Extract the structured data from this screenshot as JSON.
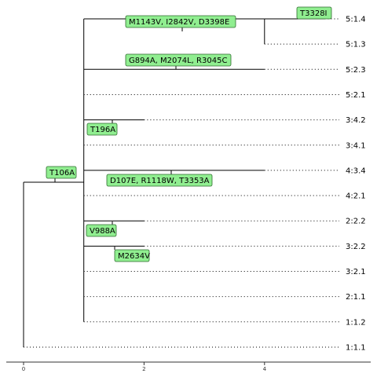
{
  "colors": {
    "mutation_box": "#90ee90",
    "branch": "#000000"
  },
  "tree": {
    "root": {
      "id": "root",
      "x": 0,
      "mutations": []
    },
    "nodes": [
      {
        "id": "n1",
        "parent": "root",
        "x": 1,
        "mutations": [
          "T106A"
        ]
      },
      {
        "id": "n2",
        "parent": "n1",
        "x": 4,
        "mutations": [
          "M1143V",
          "I2842V",
          "D3398E"
        ]
      },
      {
        "id": "n3",
        "parent": "n2",
        "x": 5,
        "mutations": [
          "T3328I"
        ]
      },
      {
        "id": "n4",
        "parent": "n1",
        "x": 4,
        "mutations": [
          "G894A",
          "M2074L",
          "R3045C"
        ]
      },
      {
        "id": "n5",
        "parent": "n1",
        "x": 2,
        "mutations": [
          "T196A"
        ]
      },
      {
        "id": "n6",
        "parent": "n1",
        "x": 4,
        "mutations": [
          "D107E",
          "R1118W",
          "T3353A"
        ]
      },
      {
        "id": "n7",
        "parent": "n1",
        "x": 2,
        "mutations": [
          "V988A"
        ]
      },
      {
        "id": "n8",
        "parent": "n1",
        "x": 2,
        "mutations": [
          "M2634V"
        ]
      }
    ],
    "leaves": [
      {
        "label": "5:1.4",
        "parent": "n3"
      },
      {
        "label": "5:1.3",
        "parent": "n2"
      },
      {
        "label": "5:2.3",
        "parent": "n4"
      },
      {
        "label": "5:2.1",
        "parent": "n1"
      },
      {
        "label": "3:4.2",
        "parent": "n5"
      },
      {
        "label": "3:4.1",
        "parent": "n1"
      },
      {
        "label": "4:3.4",
        "parent": "n6"
      },
      {
        "label": "4:2.1",
        "parent": "n1"
      },
      {
        "label": "2:2.2",
        "parent": "n7"
      },
      {
        "label": "3:2.2",
        "parent": "n8"
      },
      {
        "label": "3:2.1",
        "parent": "n1"
      },
      {
        "label": "2:1.1",
        "parent": "n1"
      },
      {
        "label": "1:1.2",
        "parent": "n1"
      },
      {
        "label": "1:1.1",
        "parent": "root"
      }
    ]
  },
  "axis": {
    "ticks": [
      {
        "value": 0,
        "label": "0"
      },
      {
        "value": 2,
        "label": "2"
      },
      {
        "value": 4,
        "label": "4"
      }
    ]
  }
}
